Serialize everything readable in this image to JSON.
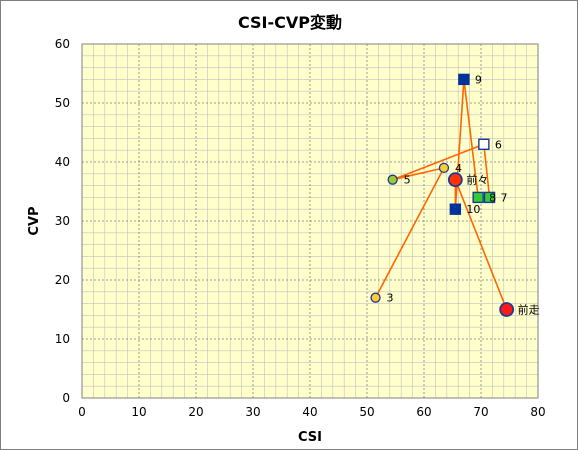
{
  "chart_data": {
    "type": "scatter",
    "title": "CSI-CVP変動",
    "xlabel": "CSI",
    "ylabel": "CVP",
    "xlim": [
      0,
      80
    ],
    "ylim": [
      0,
      60
    ],
    "xticks": [
      0,
      10,
      20,
      30,
      40,
      50,
      60,
      70,
      80
    ],
    "yticks": [
      0,
      10,
      20,
      30,
      40,
      50,
      60
    ],
    "grid": true,
    "colors": {
      "plot_bg": "#ffffcc",
      "line": "#ff6600",
      "grid_major": "#808080",
      "grid_minor": "#c0c0c0"
    },
    "path_order": [
      "3",
      "4",
      "5",
      "6",
      "7",
      "8",
      "9",
      "10",
      "前々",
      "前走"
    ],
    "points": [
      {
        "label": "3",
        "x": 51.5,
        "y": 17,
        "marker": "circle",
        "fill": "#ffcc33",
        "stroke": "#1f3a93"
      },
      {
        "label": "4",
        "x": 63.5,
        "y": 39,
        "marker": "circle",
        "fill": "#ffcc33",
        "stroke": "#1f3a93"
      },
      {
        "label": "5",
        "x": 54.5,
        "y": 37,
        "marker": "circle",
        "fill": "#99cc33",
        "stroke": "#1f3a93"
      },
      {
        "label": "6",
        "x": 70.5,
        "y": 43,
        "marker": "square",
        "fill": "#ffffff",
        "stroke": "#1f3a93"
      },
      {
        "label": "7",
        "x": 71.5,
        "y": 34,
        "marker": "square",
        "fill": "#33cc33",
        "stroke": "#1f3a93"
      },
      {
        "label": "8",
        "x": 69.5,
        "y": 34,
        "marker": "square",
        "fill": "#33cc33",
        "stroke": "#1f3a93"
      },
      {
        "label": "9",
        "x": 67.0,
        "y": 54,
        "marker": "square",
        "fill": "#003399",
        "stroke": "#003399"
      },
      {
        "label": "10",
        "x": 65.5,
        "y": 32,
        "marker": "square",
        "fill": "#003399",
        "stroke": "#003399"
      },
      {
        "label": "前々",
        "x": 65.5,
        "y": 37,
        "marker": "circle-big",
        "fill": "#ff3300",
        "stroke": "#1f3a93"
      },
      {
        "label": "前走",
        "x": 74.5,
        "y": 15,
        "marker": "circle-big",
        "fill": "#ff1a1a",
        "stroke": "#1f3a93"
      }
    ]
  }
}
